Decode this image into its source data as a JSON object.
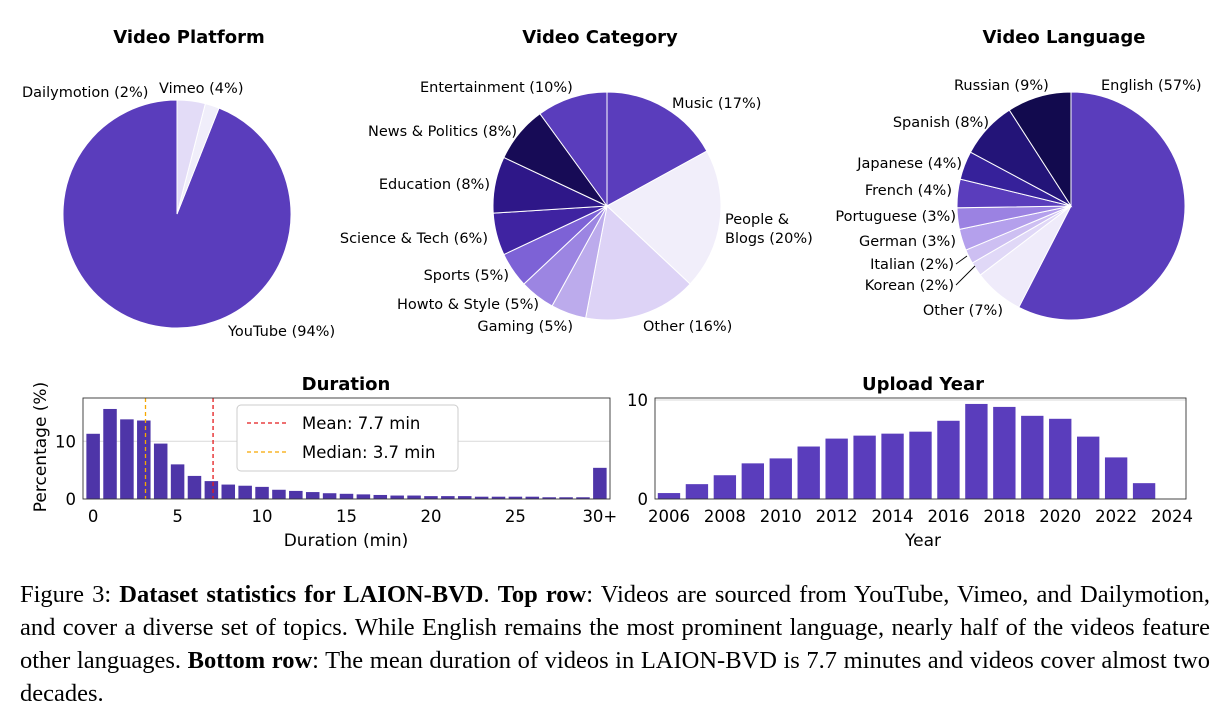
{
  "chart_data": [
    {
      "type": "pie",
      "title": "Video Platform",
      "slices": [
        {
          "label": "YouTube (94%)",
          "value": 94,
          "color": "#5a3dbc"
        },
        {
          "label": "Dailymotion (2%)",
          "value": 2,
          "color": "#f0eefa"
        },
        {
          "label": "Vimeo (4%)",
          "value": 4,
          "color": "#e3dcf7"
        }
      ]
    },
    {
      "type": "pie",
      "title": "Video Category",
      "slices": [
        {
          "label": "Music (17%)",
          "value": 17,
          "color": "#5a3dbc"
        },
        {
          "label": "People & Blogs (20%)",
          "value": 20,
          "color": "#f1eefa"
        },
        {
          "label": "Other (16%)",
          "value": 16,
          "color": "#ddd3f6"
        },
        {
          "label": "Gaming (5%)",
          "value": 5,
          "color": "#bcabec"
        },
        {
          "label": "Howto & Style (5%)",
          "value": 5,
          "color": "#9c85e2"
        },
        {
          "label": "Sports (5%)",
          "value": 5,
          "color": "#7d62d6"
        },
        {
          "label": "Science & Tech (6%)",
          "value": 6,
          "color": "#3f23a1"
        },
        {
          "label": "Education (8%)",
          "value": 8,
          "color": "#2e1788"
        },
        {
          "label": "News & Politics (8%)",
          "value": 8,
          "color": "#170b56"
        },
        {
          "label": "Entertainment (10%)",
          "value": 10,
          "color": "#5a3dbc"
        }
      ]
    },
    {
      "type": "pie",
      "title": "Video Language",
      "slices": [
        {
          "label": "English (57%)",
          "value": 57,
          "color": "#5a3dbc"
        },
        {
          "label": "Other (7%)",
          "value": 7,
          "color": "#efebfa"
        },
        {
          "label": "Korean (2%)",
          "value": 2,
          "color": "#e0d8f7"
        },
        {
          "label": "Italian (2%)",
          "value": 2,
          "color": "#cdbff2"
        },
        {
          "label": "German (3%)",
          "value": 3,
          "color": "#b4a0ec"
        },
        {
          "label": "Portuguese (3%)",
          "value": 3,
          "color": "#9b82e2"
        },
        {
          "label": "French (4%)",
          "value": 4,
          "color": "#5a3dbc"
        },
        {
          "label": "Japanese (4%)",
          "value": 4,
          "color": "#36219a"
        },
        {
          "label": "Spanish (8%)",
          "value": 8,
          "color": "#231478"
        },
        {
          "label": "Russian (9%)",
          "value": 9,
          "color": "#120a4e"
        }
      ]
    },
    {
      "type": "bar",
      "title": "Duration",
      "xlabel": "Duration (min)",
      "ylabel": "Percentage (%)",
      "x": [
        0,
        1,
        2,
        3,
        4,
        5,
        6,
        7,
        8,
        9,
        10,
        11,
        12,
        13,
        14,
        15,
        16,
        17,
        18,
        19,
        20,
        21,
        22,
        23,
        24,
        25,
        26,
        27,
        28,
        29,
        30
      ],
      "values": [
        11.3,
        15.6,
        13.8,
        13.6,
        9.6,
        6.0,
        4.0,
        3.1,
        2.5,
        2.3,
        2.1,
        1.6,
        1.4,
        1.2,
        1.0,
        0.9,
        0.8,
        0.7,
        0.6,
        0.6,
        0.5,
        0.5,
        0.5,
        0.4,
        0.4,
        0.4,
        0.4,
        0.3,
        0.3,
        0.3,
        5.4
      ],
      "xticks": [
        "0",
        "5",
        "10",
        "15",
        "20",
        "25",
        "30+"
      ],
      "xtick_values": [
        0,
        5,
        10,
        15,
        20,
        25,
        30
      ],
      "yticks": [
        0,
        10
      ],
      "ylim": [
        0,
        17.5
      ],
      "xlim": [
        -0.6,
        30.6
      ],
      "grid": true,
      "bar_color": "#4e35a8",
      "lines": [
        {
          "label": "Mean: 7.7 min",
          "x": 7.1,
          "color": "#e41a1c"
        },
        {
          "label": "Median: 3.7 min",
          "x": 3.1,
          "color": "#f6a800"
        }
      ],
      "legend": "top-center"
    },
    {
      "type": "bar",
      "title": "Upload Year",
      "xlabel": "Year",
      "ylabel": "",
      "x": [
        2006,
        2007,
        2008,
        2009,
        2010,
        2011,
        2012,
        2013,
        2014,
        2015,
        2016,
        2017,
        2018,
        2019,
        2020,
        2021,
        2022,
        2023
      ],
      "values": [
        0.6,
        1.5,
        2.4,
        3.6,
        4.1,
        5.3,
        6.1,
        6.4,
        6.6,
        6.8,
        7.9,
        9.6,
        9.3,
        8.4,
        8.1,
        6.3,
        4.2,
        1.6
      ],
      "xticks": [
        "2006",
        "2008",
        "2010",
        "2012",
        "2014",
        "2016",
        "2018",
        "2020",
        "2022",
        "2024"
      ],
      "xtick_values": [
        2006,
        2008,
        2010,
        2012,
        2014,
        2016,
        2018,
        2020,
        2022,
        2024
      ],
      "yticks": [
        0,
        10
      ],
      "ylim": [
        0,
        10.2
      ],
      "xlim": [
        2005.5,
        2024.5
      ],
      "grid": true,
      "bar_color": "#5a3dbc"
    }
  ],
  "caption": {
    "prefix": "Figure 3: ",
    "bold1": "Dataset statistics for LAION-BVD",
    "mid1": ". ",
    "bold2": "Top row",
    "mid2": ": Videos are sourced from YouTube, Vimeo, and Dailymotion, and cover a diverse set of topics.  While English remains the most prominent language, nearly half of the videos feature other languages. ",
    "bold3": "Bottom row",
    "mid3": ": The mean duration of videos in LAION-BVD is 7.7 minutes and videos cover almost two decades."
  }
}
